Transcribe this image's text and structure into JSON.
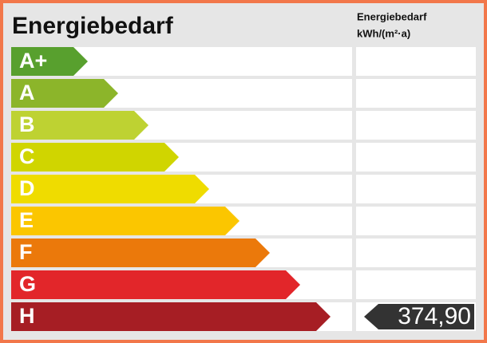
{
  "title": "Energiebedarf",
  "column_header": [
    "Energiebedarf",
    "kWh/(m²·a)"
  ],
  "classes": [
    {
      "label": "A+",
      "color": "#58a02e"
    },
    {
      "label": "A",
      "color": "#8cb52a"
    },
    {
      "label": "B",
      "color": "#bed232"
    },
    {
      "label": "C",
      "color": "#d0d500"
    },
    {
      "label": "D",
      "color": "#efdc00"
    },
    {
      "label": "E",
      "color": "#fbc600"
    },
    {
      "label": "F",
      "color": "#eb790b"
    },
    {
      "label": "G",
      "color": "#e2262a"
    },
    {
      "label": "H",
      "color": "#a61e24",
      "value": "374,90"
    }
  ]
}
